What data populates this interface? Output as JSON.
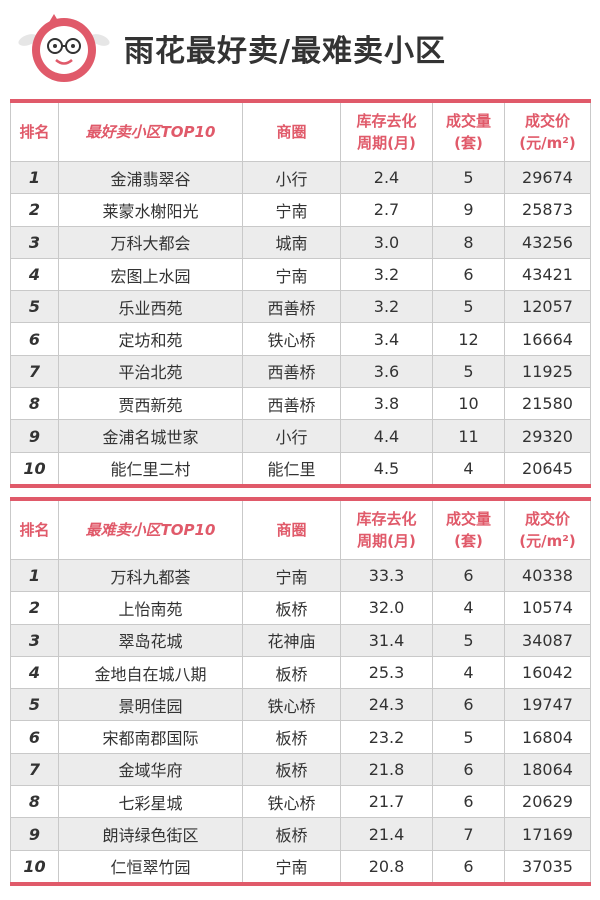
{
  "title": "雨花最好卖/最难卖小区",
  "best": {
    "headers": {
      "rank": "排名",
      "name": "最好卖小区TOP10",
      "area": "商圈",
      "cycle_line1": "库存去化",
      "cycle_line2": "周期(月)",
      "volume_line1": "成交量",
      "volume_line2": "(套)",
      "price_line1": "成交价",
      "price_line2": "(元/m²)"
    },
    "rows": [
      {
        "rank": "1",
        "name": "金浦翡翠谷",
        "area": "小行",
        "cycle": "2.4",
        "volume": "5",
        "price": "29674"
      },
      {
        "rank": "2",
        "name": "莱蒙水榭阳光",
        "area": "宁南",
        "cycle": "2.7",
        "volume": "9",
        "price": "25873"
      },
      {
        "rank": "3",
        "name": "万科大都会",
        "area": "城南",
        "cycle": "3.0",
        "volume": "8",
        "price": "43256"
      },
      {
        "rank": "4",
        "name": "宏图上水园",
        "area": "宁南",
        "cycle": "3.2",
        "volume": "6",
        "price": "43421"
      },
      {
        "rank": "5",
        "name": "乐业西苑",
        "area": "西善桥",
        "cycle": "3.2",
        "volume": "5",
        "price": "12057"
      },
      {
        "rank": "6",
        "name": "定坊和苑",
        "area": "铁心桥",
        "cycle": "3.4",
        "volume": "12",
        "price": "16664"
      },
      {
        "rank": "7",
        "name": "平治北苑",
        "area": "西善桥",
        "cycle": "3.6",
        "volume": "5",
        "price": "11925"
      },
      {
        "rank": "8",
        "name": "贾西新苑",
        "area": "西善桥",
        "cycle": "3.8",
        "volume": "10",
        "price": "21580"
      },
      {
        "rank": "9",
        "name": "金浦名城世家",
        "area": "小行",
        "cycle": "4.4",
        "volume": "11",
        "price": "29320"
      },
      {
        "rank": "10",
        "name": "能仁里二村",
        "area": "能仁里",
        "cycle": "4.5",
        "volume": "4",
        "price": "20645"
      }
    ]
  },
  "worst": {
    "headers": {
      "rank": "排名",
      "name": "最难卖小区TOP10",
      "area": "商圈",
      "cycle_line1": "库存去化",
      "cycle_line2": "周期(月)",
      "volume_line1": "成交量",
      "volume_line2": "(套)",
      "price_line1": "成交价",
      "price_line2": "(元/m²)"
    },
    "rows": [
      {
        "rank": "1",
        "name": "万科九都荟",
        "area": "宁南",
        "cycle": "33.3",
        "volume": "6",
        "price": "40338"
      },
      {
        "rank": "2",
        "name": "上怡南苑",
        "area": "板桥",
        "cycle": "32.0",
        "volume": "4",
        "price": "10574"
      },
      {
        "rank": "3",
        "name": "翠岛花城",
        "area": "花神庙",
        "cycle": "31.4",
        "volume": "5",
        "price": "34087"
      },
      {
        "rank": "4",
        "name": "金地自在城八期",
        "area": "板桥",
        "cycle": "25.3",
        "volume": "4",
        "price": "16042"
      },
      {
        "rank": "5",
        "name": "景明佳园",
        "area": "铁心桥",
        "cycle": "24.3",
        "volume": "6",
        "price": "19747"
      },
      {
        "rank": "6",
        "name": "宋都南郡国际",
        "area": "板桥",
        "cycle": "23.2",
        "volume": "5",
        "price": "16804"
      },
      {
        "rank": "7",
        "name": "金域华府",
        "area": "板桥",
        "cycle": "21.8",
        "volume": "6",
        "price": "18064"
      },
      {
        "rank": "8",
        "name": "七彩星城",
        "area": "铁心桥",
        "cycle": "21.7",
        "volume": "6",
        "price": "20629"
      },
      {
        "rank": "9",
        "name": "朗诗绿色街区",
        "area": "板桥",
        "cycle": "21.4",
        "volume": "7",
        "price": "17169"
      },
      {
        "rank": "10",
        "name": "仁恒翠竹园",
        "area": "宁南",
        "cycle": "20.8",
        "volume": "6",
        "price": "37035"
      }
    ]
  },
  "colors": {
    "accent": "#e05a6a",
    "row_shade": "#ececec",
    "text": "#333333"
  },
  "icons": {
    "logo": "mascot-logo-icon"
  }
}
